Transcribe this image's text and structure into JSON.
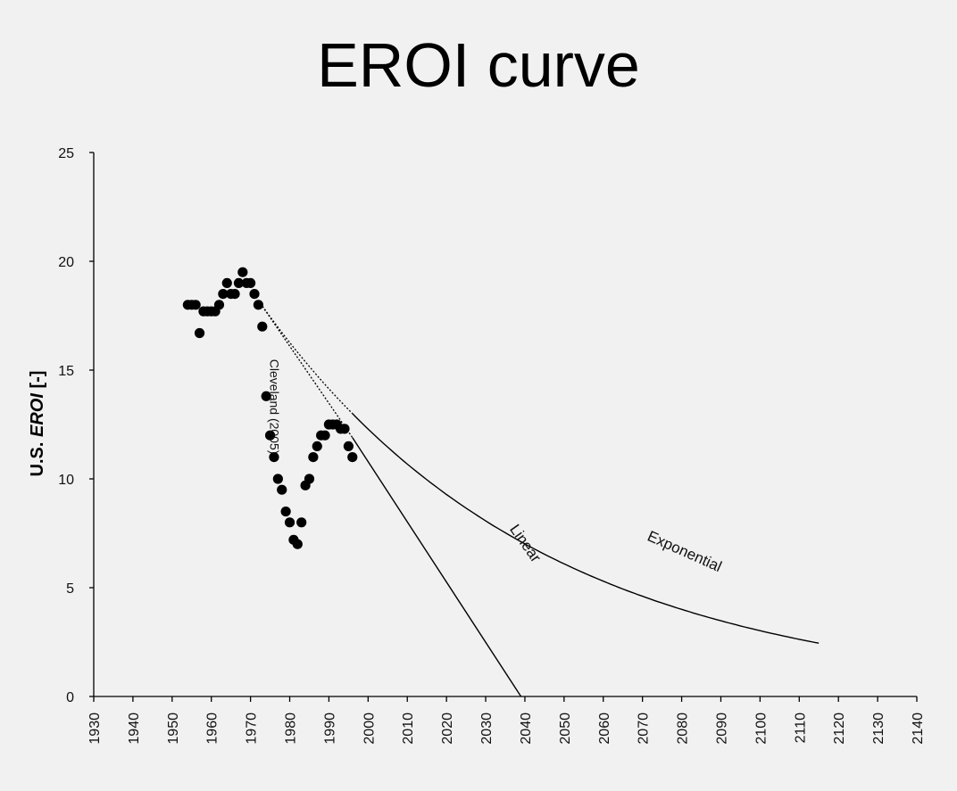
{
  "chart_data": {
    "type": "scatter",
    "title": "EROI curve",
    "ylabel_prefix": "U.S. ",
    "ylabel_italic": "EROI",
    "ylabel_suffix": " [-]",
    "xlim": [
      1930,
      2140
    ],
    "ylim": [
      0,
      25
    ],
    "x_ticks": [
      1930,
      1940,
      1950,
      1960,
      1970,
      1980,
      1990,
      2000,
      2010,
      2020,
      2030,
      2040,
      2050,
      2060,
      2070,
      2080,
      2090,
      2100,
      2110,
      2120,
      2130,
      2140
    ],
    "y_ticks": [
      0,
      5,
      10,
      15,
      20,
      25
    ],
    "grid": false,
    "series": [
      {
        "name": "Cleveland (2005)",
        "kind": "points",
        "points": [
          [
            1954,
            18.0
          ],
          [
            1955,
            18.0
          ],
          [
            1956,
            18.0
          ],
          [
            1957,
            16.7
          ],
          [
            1958,
            17.7
          ],
          [
            1959,
            17.7
          ],
          [
            1960,
            17.7
          ],
          [
            1961,
            17.7
          ],
          [
            1962,
            18.0
          ],
          [
            1963,
            18.5
          ],
          [
            1964,
            19.0
          ],
          [
            1965,
            18.5
          ],
          [
            1966,
            18.5
          ],
          [
            1967,
            19.0
          ],
          [
            1968,
            19.5
          ],
          [
            1969,
            19.0
          ],
          [
            1970,
            19.0
          ],
          [
            1971,
            18.5
          ],
          [
            1972,
            18.0
          ],
          [
            1973,
            17.0
          ],
          [
            1974,
            13.8
          ],
          [
            1975,
            12.0
          ],
          [
            1976,
            11.0
          ],
          [
            1977,
            10.0
          ],
          [
            1978,
            9.5
          ],
          [
            1979,
            8.5
          ],
          [
            1980,
            8.0
          ],
          [
            1981,
            7.2
          ],
          [
            1982,
            7.0
          ],
          [
            1983,
            8.0
          ],
          [
            1984,
            9.7
          ],
          [
            1985,
            10.0
          ],
          [
            1986,
            11.0
          ],
          [
            1987,
            11.5
          ],
          [
            1988,
            12.0
          ],
          [
            1989,
            12.0
          ],
          [
            1990,
            12.5
          ],
          [
            1991,
            12.5
          ],
          [
            1992,
            12.5
          ],
          [
            1993,
            12.3
          ],
          [
            1994,
            12.3
          ],
          [
            1995,
            11.5
          ],
          [
            1996,
            11.0
          ]
        ]
      },
      {
        "name": "Linear",
        "kind": "line",
        "points": [
          [
            1972,
            18.2
          ],
          [
            1996,
            11.9
          ],
          [
            2039,
            0
          ]
        ],
        "dashed_until_x": 1996
      },
      {
        "name": "Exponential",
        "kind": "curve",
        "start": [
          1972,
          18.2
        ],
        "end": [
          2115,
          2.45
        ],
        "dashed_until_x": 1996
      }
    ],
    "annotations": [
      {
        "text": "Cleveland (2005)",
        "x": 1975,
        "y": 15.5,
        "rotate": 90,
        "size": 14
      },
      {
        "text": "Linear",
        "x": 2036,
        "y": 7.7,
        "rotate": 55,
        "size": 17
      },
      {
        "text": "Exponential",
        "x": 2071,
        "y": 7.2,
        "rotate": 24,
        "size": 17
      }
    ]
  }
}
